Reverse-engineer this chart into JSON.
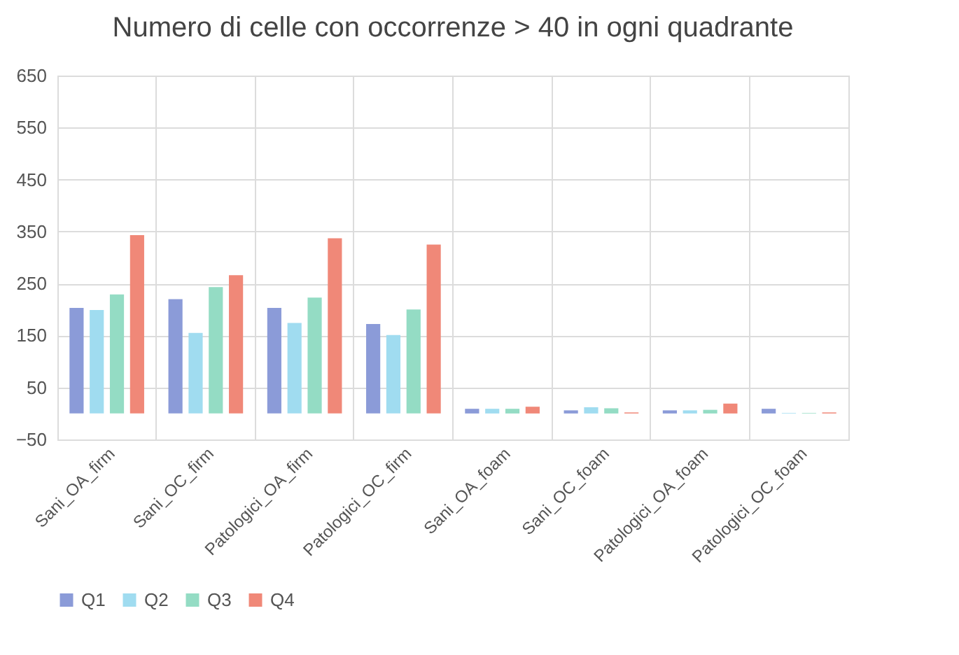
{
  "chart_data": {
    "type": "bar",
    "title": "Numero di celle con occorrenze > 40 in ogni quadrante",
    "categories": [
      "Sani_OA_firm",
      "Sani_OC_firm",
      "Patologici_OA_firm",
      "Patologici_OC_firm",
      "Sani_OA_foam",
      "Sani_OC_foam",
      "Patologici_OA_foam",
      "Patologici_OC_foam"
    ],
    "series": [
      {
        "name": "Q1",
        "color": "#8b9bd8",
        "values": [
          203,
          220,
          203,
          172,
          9,
          6,
          6,
          9
        ]
      },
      {
        "name": "Q2",
        "color": "#a0dcf0",
        "values": [
          199,
          155,
          174,
          151,
          9,
          12,
          6,
          1
        ]
      },
      {
        "name": "Q3",
        "color": "#94dcc4",
        "values": [
          229,
          243,
          223,
          200,
          9,
          10,
          7,
          1
        ]
      },
      {
        "name": "Q4",
        "color": "#f08878",
        "values": [
          343,
          266,
          337,
          325,
          13,
          2,
          19,
          2
        ]
      }
    ],
    "ylim": [
      -50,
      650
    ],
    "yticks": [
      -50,
      50,
      150,
      250,
      350,
      450,
      550,
      650
    ],
    "grid": true,
    "legend": "bottom"
  }
}
